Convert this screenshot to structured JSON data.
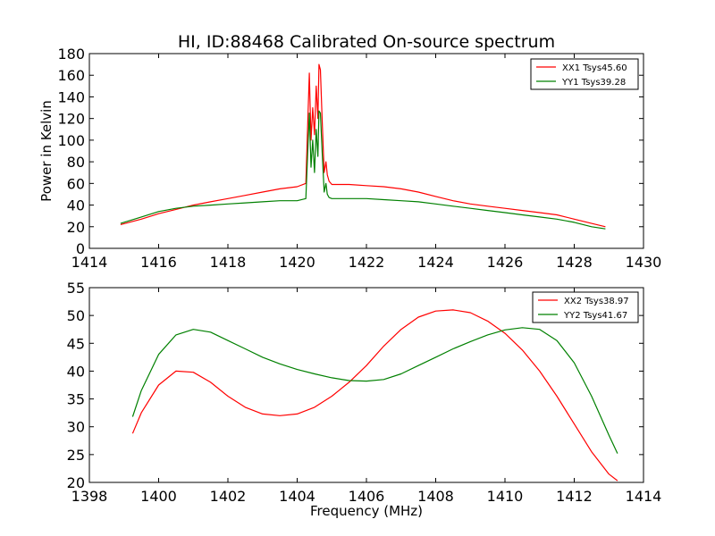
{
  "chart_data": [
    {
      "type": "line",
      "title": "HI, ID:88468 Calibrated On-source spectrum",
      "xlabel": "",
      "ylabel": "Power in Kelvin",
      "xlim": [
        1414,
        1430
      ],
      "ylim": [
        0,
        180
      ],
      "xticks": [
        1414,
        1416,
        1418,
        1420,
        1422,
        1424,
        1426,
        1428,
        1430
      ],
      "yticks": [
        0,
        20,
        40,
        60,
        80,
        100,
        120,
        140,
        160,
        180
      ],
      "legend_position": "top-right",
      "series": [
        {
          "name": "XX1 Tsys45.60",
          "color": "#ff0000",
          "x": [
            1414.9,
            1415.5,
            1416.0,
            1416.5,
            1417.0,
            1417.5,
            1418.0,
            1418.5,
            1419.0,
            1419.5,
            1420.0,
            1420.25,
            1420.35,
            1420.4,
            1420.45,
            1420.5,
            1420.55,
            1420.6,
            1420.63,
            1420.67,
            1420.72,
            1420.78,
            1420.83,
            1420.87,
            1420.92,
            1421.0,
            1421.2,
            1421.5,
            1422.0,
            1422.5,
            1423.0,
            1423.5,
            1424.0,
            1424.5,
            1425.0,
            1425.5,
            1426.0,
            1426.5,
            1427.0,
            1427.5,
            1428.0,
            1428.5,
            1428.9
          ],
          "y": [
            22,
            27,
            32,
            36,
            40,
            43,
            46,
            49,
            52,
            55,
            57,
            60,
            162,
            100,
            130,
            105,
            150,
            120,
            170,
            165,
            120,
            70,
            80,
            68,
            62,
            59,
            59,
            59,
            58,
            57,
            55,
            52,
            48,
            44,
            41,
            39,
            37,
            35,
            33,
            31,
            27,
            23,
            20
          ]
        },
        {
          "name": "YY1 Tsys39.28",
          "color": "#008000",
          "x": [
            1414.9,
            1415.5,
            1416.0,
            1416.5,
            1417.0,
            1417.5,
            1418.0,
            1418.5,
            1419.0,
            1419.5,
            1420.0,
            1420.25,
            1420.35,
            1420.4,
            1420.45,
            1420.5,
            1420.55,
            1420.6,
            1420.63,
            1420.67,
            1420.72,
            1420.78,
            1420.83,
            1420.87,
            1420.92,
            1421.0,
            1421.2,
            1421.5,
            1422.0,
            1422.5,
            1423.0,
            1423.5,
            1424.0,
            1424.5,
            1425.0,
            1425.5,
            1426.0,
            1426.5,
            1427.0,
            1427.5,
            1428.0,
            1428.5,
            1428.9
          ],
          "y": [
            23,
            29,
            34,
            37,
            39,
            40,
            41,
            42,
            43,
            44,
            44,
            46,
            125,
            75,
            100,
            70,
            110,
            85,
            127,
            125,
            90,
            52,
            60,
            50,
            47,
            46,
            46,
            46,
            46,
            45,
            44,
            43,
            41,
            39,
            37,
            35,
            33,
            31,
            29,
            27,
            24,
            20,
            18
          ]
        }
      ]
    },
    {
      "type": "line",
      "title": "",
      "xlabel": "Frequency (MHz)",
      "ylabel": "",
      "xlim": [
        1398,
        1414
      ],
      "ylim": [
        20,
        55
      ],
      "xticks": [
        1398,
        1400,
        1402,
        1404,
        1406,
        1408,
        1410,
        1412,
        1414
      ],
      "yticks": [
        20,
        25,
        30,
        35,
        40,
        45,
        50,
        55
      ],
      "legend_position": "top-right",
      "series": [
        {
          "name": "XX2 Tsys38.97",
          "color": "#ff0000",
          "x": [
            1399.25,
            1399.5,
            1400.0,
            1400.5,
            1401.0,
            1401.5,
            1402.0,
            1402.5,
            1403.0,
            1403.5,
            1404.0,
            1404.5,
            1405.0,
            1405.5,
            1406.0,
            1406.5,
            1407.0,
            1407.5,
            1408.0,
            1408.5,
            1409.0,
            1409.5,
            1410.0,
            1410.5,
            1411.0,
            1411.5,
            1412.0,
            1412.5,
            1413.0,
            1413.25
          ],
          "y": [
            28.8,
            32.5,
            37.5,
            40.0,
            39.8,
            38.0,
            35.5,
            33.5,
            32.3,
            32.0,
            32.3,
            33.5,
            35.5,
            38.0,
            41.0,
            44.5,
            47.5,
            49.7,
            50.8,
            51.0,
            50.5,
            49.0,
            46.8,
            43.8,
            40.0,
            35.5,
            30.5,
            25.5,
            21.5,
            20.3
          ]
        },
        {
          "name": "YY2 Tsys41.67",
          "color": "#008000",
          "x": [
            1399.25,
            1399.5,
            1400.0,
            1400.5,
            1401.0,
            1401.5,
            1402.0,
            1402.5,
            1403.0,
            1403.5,
            1404.0,
            1404.5,
            1405.0,
            1405.5,
            1406.0,
            1406.5,
            1407.0,
            1407.5,
            1408.0,
            1408.5,
            1409.0,
            1409.5,
            1410.0,
            1410.5,
            1411.0,
            1411.5,
            1412.0,
            1412.5,
            1413.0,
            1413.25
          ],
          "y": [
            31.8,
            36.5,
            43.0,
            46.5,
            47.5,
            47.0,
            45.5,
            44.0,
            42.5,
            41.3,
            40.3,
            39.5,
            38.8,
            38.3,
            38.2,
            38.5,
            39.5,
            41.0,
            42.5,
            44.0,
            45.3,
            46.5,
            47.4,
            47.8,
            47.5,
            45.5,
            41.5,
            35.5,
            28.5,
            25.2
          ]
        }
      ]
    }
  ]
}
